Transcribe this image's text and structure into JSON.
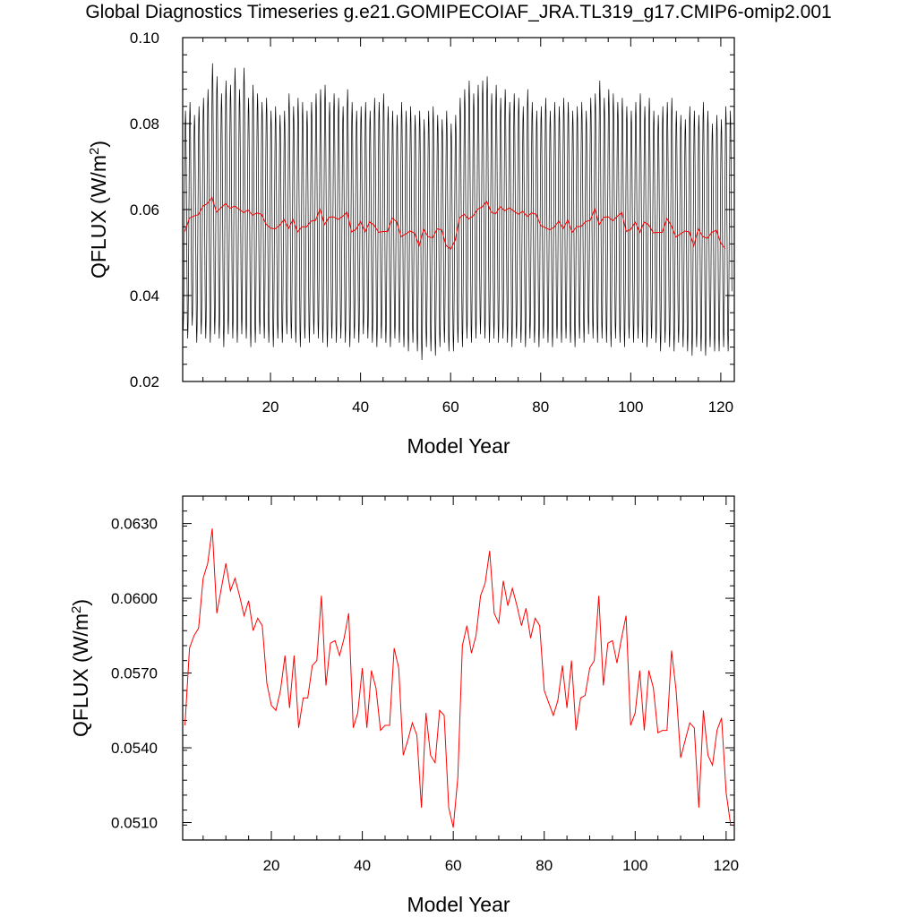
{
  "title": "Global Diagnostics Timeseries g.e21.GOMIPECOIAF_JRA.TL319_g17.CMIP6-omip2.001",
  "colors": {
    "monthly": "#000000",
    "annual": "#ff0000",
    "axes": "#000000"
  },
  "chart_data": [
    {
      "type": "line",
      "xlabel": "Model Year",
      "ylabel_main": "QFLUX (W/m",
      "ylabel_sup": "2",
      "ylabel_close": ")",
      "xlim": [
        0.5,
        123.0
      ],
      "ylim": [
        0.02,
        0.1
      ],
      "xticks": [
        "20",
        "40",
        "60",
        "80",
        "100",
        "120"
      ],
      "yticks": [
        "0.02",
        "0.04",
        "0.06",
        "0.08",
        "0.10"
      ],
      "series": [
        {
          "key": "monthly",
          "color": "#000000",
          "resolution": "monthly (12 per model year)",
          "annual_max": [
            0.083,
            0.085,
            0.082,
            0.084,
            0.086,
            0.088,
            0.094,
            0.091,
            0.087,
            0.09,
            0.089,
            0.093,
            0.088,
            0.093,
            0.086,
            0.089,
            0.087,
            0.085,
            0.086,
            0.083,
            0.084,
            0.082,
            0.083,
            0.087,
            0.084,
            0.086,
            0.085,
            0.083,
            0.085,
            0.087,
            0.088,
            0.089,
            0.085,
            0.087,
            0.086,
            0.084,
            0.088,
            0.085,
            0.083,
            0.084,
            0.085,
            0.083,
            0.086,
            0.085,
            0.087,
            0.084,
            0.083,
            0.082,
            0.085,
            0.083,
            0.084,
            0.082,
            0.083,
            0.081,
            0.083,
            0.084,
            0.082,
            0.081,
            0.083,
            0.08,
            0.082,
            0.086,
            0.088,
            0.09,
            0.087,
            0.089,
            0.09,
            0.091,
            0.087,
            0.089,
            0.086,
            0.088,
            0.085,
            0.087,
            0.086,
            0.084,
            0.088,
            0.085,
            0.083,
            0.084,
            0.086,
            0.083,
            0.085,
            0.084,
            0.086,
            0.085,
            0.083,
            0.084,
            0.085,
            0.083,
            0.086,
            0.087,
            0.09,
            0.086,
            0.088,
            0.087,
            0.085,
            0.086,
            0.084,
            0.083,
            0.085,
            0.087,
            0.084,
            0.086,
            0.083,
            0.082,
            0.084,
            0.085,
            0.086,
            0.083,
            0.082,
            0.081,
            0.084,
            0.083,
            0.082,
            0.085,
            0.083,
            0.08,
            0.082,
            0.081,
            0.084,
            0.083
          ],
          "annual_min": [
            0.032,
            0.03,
            0.033,
            0.029,
            0.031,
            0.03,
            0.029,
            0.031,
            0.03,
            0.028,
            0.031,
            0.03,
            0.029,
            0.031,
            0.03,
            0.028,
            0.029,
            0.031,
            0.03,
            0.029,
            0.028,
            0.03,
            0.029,
            0.031,
            0.03,
            0.029,
            0.028,
            0.03,
            0.029,
            0.031,
            0.03,
            0.029,
            0.028,
            0.03,
            0.029,
            0.03,
            0.029,
            0.028,
            0.03,
            0.029,
            0.031,
            0.03,
            0.029,
            0.028,
            0.03,
            0.029,
            0.028,
            0.03,
            0.029,
            0.028,
            0.027,
            0.029,
            0.027,
            0.025,
            0.028,
            0.027,
            0.026,
            0.028,
            0.029,
            0.027,
            0.027,
            0.029,
            0.028,
            0.03,
            0.029,
            0.03,
            0.031,
            0.03,
            0.029,
            0.03,
            0.029,
            0.03,
            0.029,
            0.028,
            0.03,
            0.029,
            0.028,
            0.03,
            0.029,
            0.028,
            0.03,
            0.029,
            0.028,
            0.03,
            0.029,
            0.03,
            0.029,
            0.028,
            0.03,
            0.029,
            0.031,
            0.03,
            0.029,
            0.03,
            0.029,
            0.028,
            0.03,
            0.029,
            0.028,
            0.03,
            0.029,
            0.03,
            0.029,
            0.028,
            0.03,
            0.029,
            0.027,
            0.029,
            0.028,
            0.027,
            0.029,
            0.028,
            0.027,
            0.026,
            0.028,
            0.027,
            0.026,
            0.028,
            0.027,
            0.027,
            0.028,
            0.027
          ]
        },
        {
          "key": "annual",
          "color": "#ff0000",
          "resolution": "annual means",
          "values": [
            0.0549,
            0.058,
            0.0585,
            0.0588,
            0.0608,
            0.0614,
            0.0628,
            0.0594,
            0.0604,
            0.0614,
            0.0603,
            0.0608,
            0.0601,
            0.0593,
            0.0599,
            0.0587,
            0.0592,
            0.0589,
            0.0566,
            0.0557,
            0.0555,
            0.0563,
            0.0577,
            0.0556,
            0.0577,
            0.0548,
            0.056,
            0.056,
            0.0573,
            0.0575,
            0.0601,
            0.0565,
            0.0582,
            0.0583,
            0.0577,
            0.0584,
            0.0594,
            0.0548,
            0.0554,
            0.0572,
            0.0548,
            0.0571,
            0.0564,
            0.0547,
            0.0549,
            0.0549,
            0.058,
            0.0572,
            0.0537,
            0.0543,
            0.055,
            0.0545,
            0.0516,
            0.0554,
            0.0537,
            0.0534,
            0.0555,
            0.0553,
            0.0516,
            0.0508,
            0.0528,
            0.0581,
            0.0589,
            0.0578,
            0.0585,
            0.0601,
            0.0606,
            0.0619,
            0.0594,
            0.059,
            0.0607,
            0.0597,
            0.0604,
            0.0597,
            0.0589,
            0.0596,
            0.0584,
            0.0592,
            0.0589,
            0.0563,
            0.0558,
            0.0553,
            0.0559,
            0.0573,
            0.0556,
            0.0575,
            0.0547,
            0.056,
            0.0561,
            0.0572,
            0.0575,
            0.0601,
            0.0565,
            0.0582,
            0.0583,
            0.0574,
            0.0584,
            0.0593,
            0.0549,
            0.0554,
            0.0571,
            0.0547,
            0.0571,
            0.0564,
            0.0546,
            0.0547,
            0.0547,
            0.0579,
            0.0563,
            0.0536,
            0.0543,
            0.055,
            0.0548,
            0.0516,
            0.0555,
            0.0537,
            0.0533,
            0.0547,
            0.0552,
            0.0522,
            0.0509
          ]
        }
      ]
    },
    {
      "type": "line",
      "xlabel": "Model Year",
      "ylabel_main": "QFLUX (W/m",
      "ylabel_sup": "2",
      "ylabel_close": ")",
      "xlim": [
        0.5,
        121.8
      ],
      "ylim": [
        0.0503,
        0.0641
      ],
      "xticks": [
        "20",
        "40",
        "60",
        "80",
        "100",
        "120"
      ],
      "yticks": [
        "0.0510",
        "0.0540",
        "0.0570",
        "0.0600",
        "0.0630"
      ],
      "series": [
        {
          "key": "annual",
          "color": "#ff0000",
          "resolution": "annual means",
          "values_ref": "same as top panel annual series"
        }
      ]
    }
  ]
}
